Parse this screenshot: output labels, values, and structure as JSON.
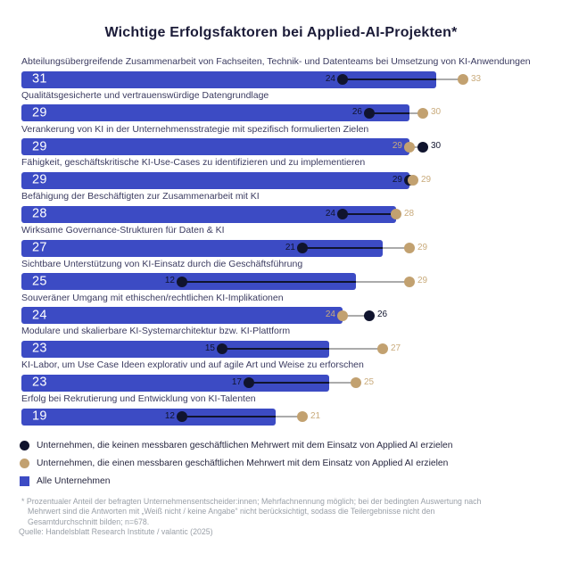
{
  "title": "Wichtige Erfolgsfaktoren bei Applied-AI-Projekten*",
  "colors": {
    "bar_blue": "#3c4bc4",
    "dot_dark_navy": "#10142e",
    "dot_tan": "#c2a170",
    "tan_text": "#c9ab7c",
    "dark_text": "#10142e",
    "connector_gray": "#ababab",
    "title_text": "#1b1b38",
    "label_text": "#3b3b60",
    "footnote_gray": "#9aa0a8"
  },
  "chart_data": {
    "type": "bar",
    "orientation": "horizontal",
    "value_unit": "percent of respondents",
    "x_range": [
      0,
      33
    ],
    "grid": false,
    "series_names": {
      "alle": "Alle Unternehmen",
      "kein_mehrwert": "Unternehmen, die keinen messbaren geschäftlichen Mehrwert mit dem Einsatz von Applied AI erzielen",
      "mehrwert": "Unternehmen, die einen messbaren geschäftlichen Mehrwert mit dem Einsatz von Applied AI erzielen"
    },
    "rows": [
      {
        "label": "Abteilungsübergreifende Zusammenarbeit von Fachseiten, Technik- und Datenteams bei Umsetzung von KI-Anwendungen",
        "alle": 31,
        "kein_mehrwert": 24,
        "mehrwert": 33
      },
      {
        "label": "Qualitätsgesicherte und vertrauenswürdige Datengrundlage",
        "alle": 29,
        "kein_mehrwert": 26,
        "mehrwert": 30
      },
      {
        "label": "Verankerung von KI in der Unternehmensstrategie mit spezifisch formulierten Zielen",
        "alle": 29,
        "kein_mehrwert": 30,
        "mehrwert": 29
      },
      {
        "label": "Fähigkeit, geschäftskritische KI-Use-Cases zu identifizieren und zu implementieren",
        "alle": 29,
        "kein_mehrwert": 29,
        "mehrwert": 29
      },
      {
        "label": "Befähigung der Beschäftigten zur Zusammenarbeit mit KI",
        "alle": 28,
        "kein_mehrwert": 24,
        "mehrwert": 28
      },
      {
        "label": "Wirksame Governance-Strukturen für Daten & KI",
        "alle": 27,
        "kein_mehrwert": 21,
        "mehrwert": 29
      },
      {
        "label": "Sichtbare Unterstützung von KI-Einsatz durch die Geschäftsführung",
        "alle": 25,
        "kein_mehrwert": 12,
        "mehrwert": 29
      },
      {
        "label": "Souveräner Umgang mit ethischen/rechtlichen KI-Implikationen",
        "alle": 24,
        "kein_mehrwert": 26,
        "mehrwert": 24
      },
      {
        "label": "Modulare und skalierbare KI-Systemarchitektur bzw. KI-Plattform",
        "alle": 23,
        "kein_mehrwert": 15,
        "mehrwert": 27
      },
      {
        "label": "KI-Labor, um Use Case Ideen explorativ und auf agile Art und Weise zu erforschen",
        "alle": 23,
        "kein_mehrwert": 17,
        "mehrwert": 25
      },
      {
        "label": "Erfolg bei Rekrutierung und Entwicklung von KI-Talenten",
        "alle": 19,
        "kein_mehrwert": 12,
        "mehrwert": 21
      }
    ]
  },
  "legend": {
    "items": [
      {
        "marker": "dark-circle",
        "label": "Unternehmen, die keinen messbaren geschäftlichen Mehrwert mit dem Einsatz von Applied AI erzielen"
      },
      {
        "marker": "tan-circle",
        "label": "Unternehmen, die einen messbaren geschäftlichen Mehrwert mit dem Einsatz von Applied AI erzielen"
      },
      {
        "marker": "blue-square",
        "label": "Alle Unternehmen"
      }
    ]
  },
  "footnote": {
    "lines": [
      "* Prozentualer Anteil der befragten Unternehmensentscheider:innen; Mehrfachnennung möglich; bei der bedingten Auswertung nach",
      "Mehrwert sind die Antworten mit „Weiß nicht / keine Angabe“ nicht berücksichtigt, sodass die Teilergebnisse nicht den",
      "Gesamtdurchschnitt bilden; n=678."
    ],
    "source": "Quelle: Handelsblatt Research Institute / valantic (2025)"
  }
}
